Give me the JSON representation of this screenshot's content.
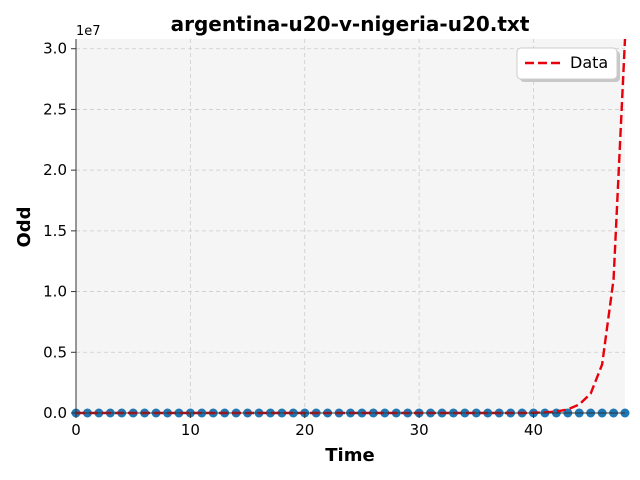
{
  "chart_data": {
    "type": "line",
    "title": "argentina-u20-v-nigeria-u20.txt",
    "xlabel": "Time",
    "ylabel": "Odd",
    "y_offset_label": "1e7",
    "xlim": [
      0,
      48
    ],
    "ylim": [
      0,
      3.08
    ],
    "x_ticks": [
      0,
      10,
      20,
      30,
      40
    ],
    "x_tick_labels": [
      "0",
      "10",
      "20",
      "30",
      "40"
    ],
    "y_ticks": [
      0,
      0.5,
      1.0,
      1.5,
      2.0,
      2.5,
      3.0
    ],
    "y_tick_labels": [
      "0.0",
      "0.5",
      "1.0",
      "1.5",
      "2.0",
      "2.5",
      "3.0"
    ],
    "grid": true,
    "legend_position": "top-right",
    "series": [
      {
        "name": "Data",
        "kind": "line",
        "style": "dashed",
        "color": "#e8000b",
        "x": [
          0,
          1,
          2,
          3,
          4,
          5,
          6,
          7,
          8,
          9,
          10,
          11,
          12,
          13,
          14,
          15,
          16,
          17,
          18,
          19,
          20,
          21,
          22,
          23,
          24,
          25,
          26,
          27,
          28,
          29,
          30,
          31,
          32,
          33,
          34,
          35,
          36,
          37,
          38,
          39,
          40,
          41,
          42,
          43,
          44,
          45,
          46,
          47,
          48
        ],
        "y": [
          0,
          0,
          0,
          0,
          0,
          0,
          0,
          0,
          0,
          0,
          0,
          0,
          0,
          0,
          0,
          0,
          0,
          0,
          0,
          0,
          0,
          0,
          0,
          0,
          0,
          0,
          0,
          0,
          0,
          0,
          0,
          0,
          0,
          0,
          0,
          0,
          0,
          0,
          0,
          0,
          0.002,
          0.005,
          0.012,
          0.03,
          0.07,
          0.16,
          0.4,
          1.1,
          3.08
        ]
      },
      {
        "kind": "scatter",
        "color": "#1f77b4",
        "x": [
          0,
          1,
          2,
          3,
          4,
          5,
          6,
          7,
          8,
          9,
          10,
          11,
          12,
          13,
          14,
          15,
          16,
          17,
          18,
          19,
          20,
          21,
          22,
          23,
          24,
          25,
          26,
          27,
          28,
          29,
          30,
          31,
          32,
          33,
          34,
          35,
          36,
          37,
          38,
          39,
          40,
          41,
          42,
          43,
          44,
          45,
          46,
          47,
          48
        ],
        "y": [
          0,
          0,
          0,
          0,
          0,
          0,
          0,
          0,
          0,
          0,
          0,
          0,
          0,
          0,
          0,
          0,
          0,
          0,
          0,
          0,
          0,
          0,
          0,
          0,
          0,
          0,
          0,
          0,
          0,
          0,
          0,
          0,
          0,
          0,
          0,
          0,
          0,
          0,
          0,
          0,
          0,
          0,
          0,
          0,
          0,
          0,
          0,
          0,
          0
        ]
      }
    ]
  }
}
